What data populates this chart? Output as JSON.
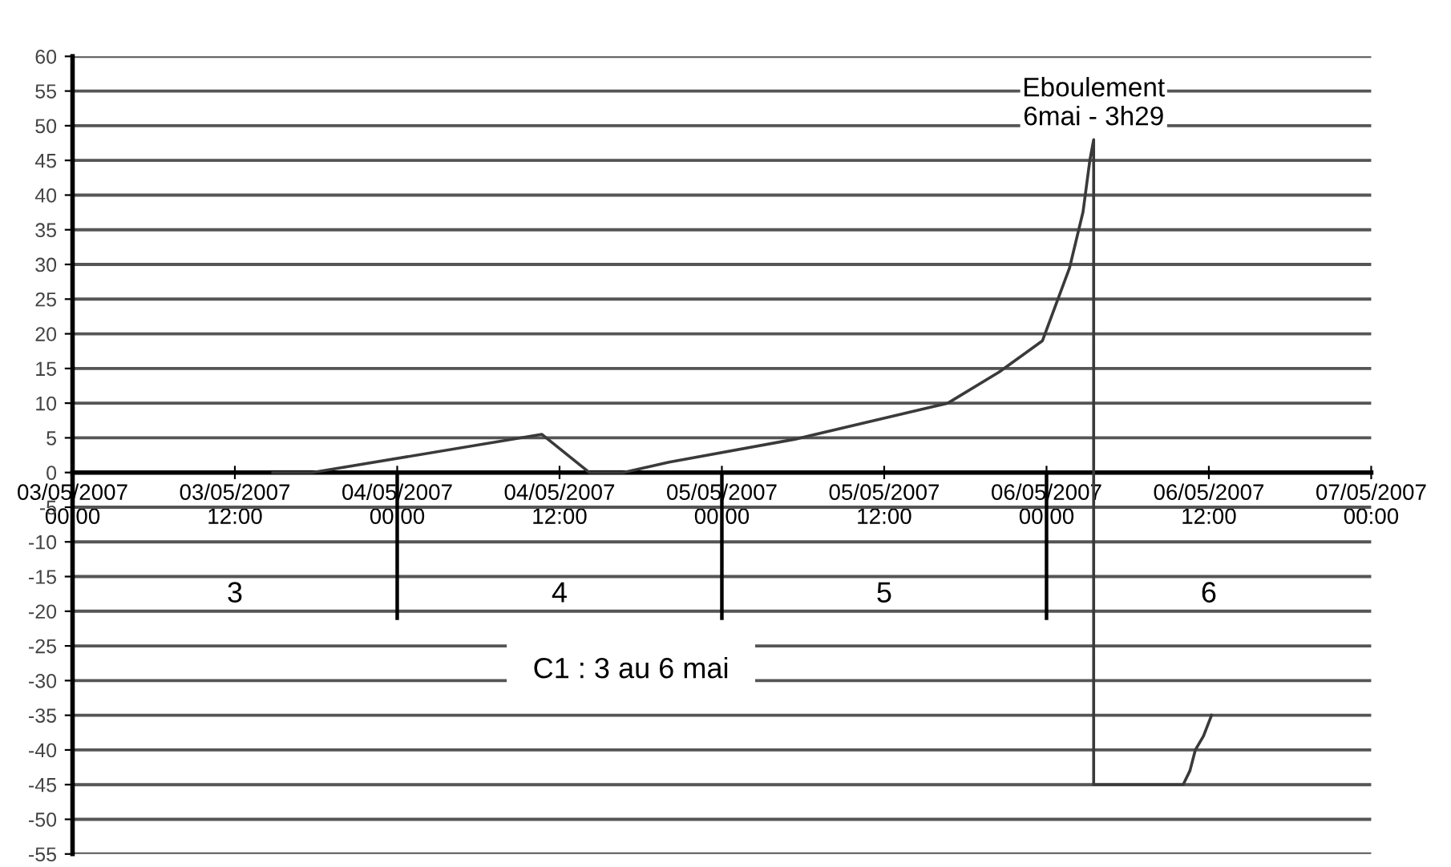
{
  "chart_data": {
    "type": "line",
    "title": "C1 : 3 au 6 mai",
    "series": [
      {
        "color": "#3a3a3a",
        "x": [
          "2007-05-03T14:48",
          "2007-05-03T17:42",
          "2007-05-04T10:42",
          "2007-05-04T14:12",
          "2007-05-04T16:42",
          "2007-05-04T20:06",
          "2007-05-05T05:24",
          "2007-05-05T16:42",
          "2007-05-05T20:30",
          "2007-05-05T23:42",
          "2007-05-06T01:42",
          "2007-05-06T02:42",
          "2007-05-06T03:12",
          "2007-05-06T03:29",
          "2007-05-06T03:29",
          "2007-05-06T10:06",
          "2007-05-06T10:36",
          "2007-05-06T11:00",
          "2007-05-06T11:36",
          "2007-05-06T12:12"
        ],
        "values": [
          0,
          0,
          5.5,
          0,
          0,
          1.5,
          4.8,
          10,
          14.5,
          19,
          29.5,
          37.6,
          45,
          48,
          -45,
          -45,
          -43,
          -40,
          -38,
          -35
        ]
      },
      {
        "color": "#000000",
        "x": [
          "2007-05-04T00:00",
          "2007-05-04T00:00"
        ],
        "values": [
          0,
          -21
        ]
      },
      {
        "color": "#000000",
        "x": [
          "2007-05-05T00:00",
          "2007-05-05T00:00"
        ],
        "values": [
          0,
          -21
        ]
      },
      {
        "color": "#000000",
        "x": [
          "2007-05-06T00:00",
          "2007-05-06T00:00"
        ],
        "values": [
          0,
          -21
        ]
      }
    ],
    "annotations": [
      {
        "text": "Eboulement\n6mai - 3h29",
        "x": "2007-05-06T03:29",
        "y": 48
      },
      "3",
      "4",
      "5",
      "6"
    ],
    "xlim": [
      "2007-05-03T00:00",
      "2007-05-07T00:00"
    ],
    "xticks": [
      {
        "value": "2007-05-03T00:00",
        "label": "03/05/2007\n00:00"
      },
      {
        "value": "2007-05-03T12:00",
        "label": "03/05/2007\n12:00"
      },
      {
        "value": "2007-05-04T00:00",
        "label": "04/05/2007\n00:00"
      },
      {
        "value": "2007-05-04T12:00",
        "label": "04/05/2007\n12:00"
      },
      {
        "value": "2007-05-05T00:00",
        "label": "05/05/2007\n00:00"
      },
      {
        "value": "2007-05-05T12:00",
        "label": "05/05/2007\n12:00"
      },
      {
        "value": "2007-05-06T00:00",
        "label": "06/05/2007\n00:00"
      },
      {
        "value": "2007-05-06T12:00",
        "label": "06/05/2007\n12:00"
      },
      {
        "value": "2007-05-07T00:00",
        "label": "07/05/2007\n00:00"
      }
    ],
    "ylim": [
      -55,
      60
    ],
    "yticks": [
      -55,
      -50,
      -45,
      -40,
      -35,
      -30,
      -25,
      -20,
      -15,
      -10,
      -5,
      0,
      5,
      10,
      15,
      20,
      25,
      30,
      35,
      40,
      45,
      50,
      55,
      60
    ],
    "grid": "y",
    "marker": "none",
    "line_style": "solid"
  }
}
